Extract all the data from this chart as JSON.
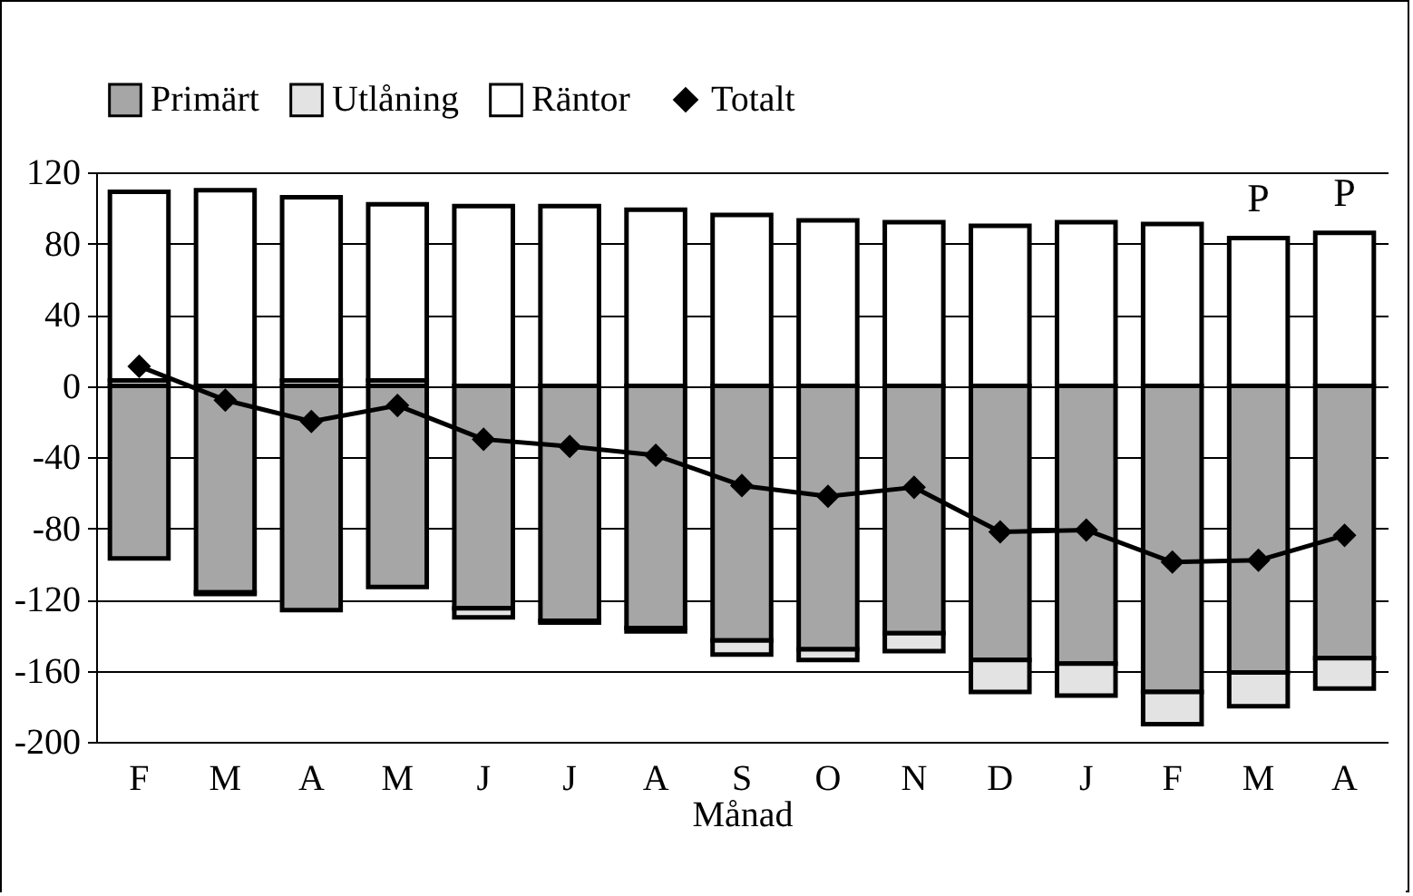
{
  "chart_data": {
    "type": "bar",
    "stacked": true,
    "xlabel": "Månad",
    "categories": [
      "F",
      "M",
      "A",
      "M",
      "J",
      "J",
      "A",
      "S",
      "O",
      "N",
      "D",
      "J",
      "F",
      "M",
      "A"
    ],
    "series": [
      {
        "name": "Primärt",
        "color": "#a6a6a6",
        "values": [
          -97,
          -116,
          -126,
          -113,
          -125,
          -132,
          -136,
          -143,
          -148,
          -139,
          -154,
          -156,
          -172,
          -161,
          -153
        ]
      },
      {
        "name": "Utlåning",
        "color": "#e3e3e3",
        "values": [
          3,
          -1,
          3,
          3,
          -5,
          -1,
          -2,
          -8,
          -6,
          -10,
          -18,
          -18,
          -18,
          -19,
          -17
        ]
      },
      {
        "name": "Räntor",
        "color": "#ffffff",
        "values": [
          106,
          110,
          103,
          99,
          101,
          101,
          99,
          96,
          93,
          92,
          90,
          92,
          91,
          83,
          86
        ]
      },
      {
        "name": "Totalt",
        "type": "line",
        "color": "#000000",
        "marker": "diamond",
        "values": [
          11,
          -8,
          -20,
          -11,
          -30,
          -34,
          -39,
          -56,
          -62,
          -57,
          -82,
          -81,
          -99,
          -98,
          -84
        ]
      }
    ],
    "ylim": [
      -200,
      120
    ],
    "yticks": [
      -200,
      -160,
      -120,
      -80,
      -40,
      0,
      40,
      80,
      120
    ],
    "grid": "y",
    "legend": "top",
    "annotations": [
      "P",
      "P"
    ]
  }
}
